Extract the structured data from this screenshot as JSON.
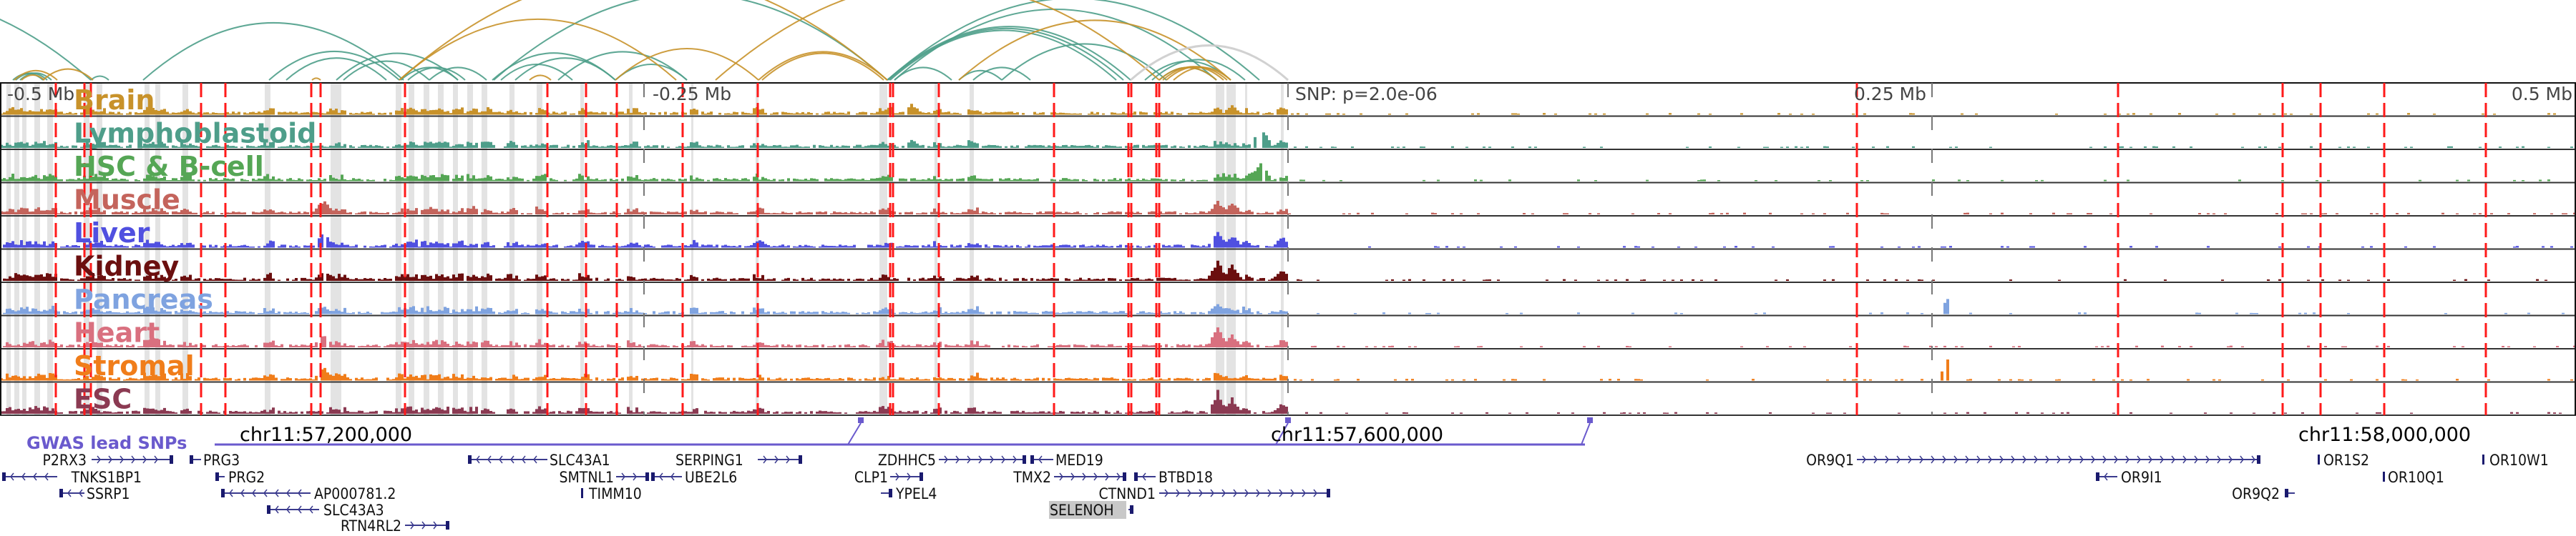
{
  "axis": {
    "ticks": [
      "-0.5 Mb",
      "-0.25 Mb",
      "0.25 Mb",
      "0.5 Mb"
    ],
    "snp_label": "SNP: p=2.0e-06"
  },
  "tracks": [
    {
      "name": "Brain",
      "color": "#c8922a"
    },
    {
      "name": "Lymphoblastoid",
      "color": "#4e9e8a"
    },
    {
      "name": "HSC & B-cell",
      "color": "#55a655"
    },
    {
      "name": "Muscle",
      "color": "#c4645c"
    },
    {
      "name": "Liver",
      "color": "#5050e0"
    },
    {
      "name": "Kidney",
      "color": "#6b0f0f"
    },
    {
      "name": "Pancreas",
      "color": "#7fa3e0"
    },
    {
      "name": "Heart",
      "color": "#d9707f"
    },
    {
      "name": "Stromal",
      "color": "#f07d1a"
    },
    {
      "name": "ESC",
      "color": "#8b3a52"
    }
  ],
  "arc_colors": {
    "teal": "#4e9e8a",
    "gold": "#c8922a",
    "gray": "#cccccc"
  },
  "gwas": {
    "label": "GWAS lead SNPs",
    "color": "#6a5acd"
  },
  "chr_labels": [
    "chr11:57,200,000",
    "chr11:57,600,000",
    "chr11:58,000,000"
  ],
  "genes": [
    {
      "name": "P2RX3",
      "strand": "+"
    },
    {
      "name": "PRG3",
      "strand": "-"
    },
    {
      "name": "TNKS1BP1",
      "strand": "-"
    },
    {
      "name": "PRG2",
      "strand": "-"
    },
    {
      "name": "SSRP1",
      "strand": "-"
    },
    {
      "name": "AP000781.2",
      "strand": "-"
    },
    {
      "name": "SLC43A3",
      "strand": "-"
    },
    {
      "name": "RTN4RL2",
      "strand": "+"
    },
    {
      "name": "SLC43A1",
      "strand": "-"
    },
    {
      "name": "SMTNL1",
      "strand": "+"
    },
    {
      "name": "UBE2L6",
      "strand": "-"
    },
    {
      "name": "TIMM10",
      "strand": "-"
    },
    {
      "name": "SERPING1",
      "strand": "+"
    },
    {
      "name": "ZDHHC5",
      "strand": "+"
    },
    {
      "name": "MED19",
      "strand": "-"
    },
    {
      "name": "CLP1",
      "strand": "+"
    },
    {
      "name": "YPEL4",
      "strand": "+"
    },
    {
      "name": "TMX2",
      "strand": "+"
    },
    {
      "name": "BTBD18",
      "strand": "-"
    },
    {
      "name": "CTNND1",
      "strand": "+"
    },
    {
      "name": "SELENOH",
      "strand": "+",
      "highlighted": true
    },
    {
      "name": "OR9Q1",
      "strand": "+"
    },
    {
      "name": "OR9I1",
      "strand": "-"
    },
    {
      "name": "OR9Q2",
      "strand": "-"
    },
    {
      "name": "OR1S2",
      "strand": "+"
    },
    {
      "name": "OR10Q1",
      "strand": "+"
    },
    {
      "name": "OR10W1",
      "strand": "+"
    }
  ]
}
